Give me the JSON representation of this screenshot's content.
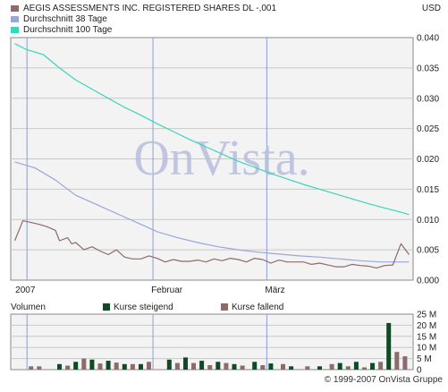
{
  "header": {
    "security_name": "AEGIS ASSESSMENTS INC. REGISTERED SHARES DL -,001",
    "currency": "USD"
  },
  "legend": [
    {
      "name": "AEGIS ASSESSMENTS INC. REGISTERED SHARES DL -,001",
      "color": "#8c6b6b"
    },
    {
      "name": "Durchschnitt 38 Tage",
      "color": "#9aa6d8"
    },
    {
      "name": "Durchschnitt 100 Tage",
      "color": "#3ad6b8"
    }
  ],
  "watermark": "OnVista.",
  "volume_panel": {
    "label": "Volumen",
    "rising_label": "Kurse steigend",
    "falling_label": "Kurse fallend",
    "rising_color": "#0f4a24",
    "falling_color": "#8c6b6b"
  },
  "copyright": "© 1999-2007 OnVista Gruppe",
  "chart_data": [
    {
      "type": "line",
      "x_tick_labels": [
        "2007",
        "Februar",
        "März"
      ],
      "x_ticks_day": [
        0,
        31,
        59
      ],
      "ylim": [
        0,
        0.04
      ],
      "y_ticks": [
        "0.000",
        "0.005",
        "0.010",
        "0.015",
        "0.020",
        "0.025",
        "0.030",
        "0.035",
        "0.040"
      ],
      "grid": true,
      "series": [
        {
          "name": "AEGIS ASSESSMENTS INC. REGISTERED SHARES DL -,001",
          "color": "#8c6b6b",
          "x_day": [
            -3,
            -1,
            1,
            3,
            5,
            7,
            8,
            10,
            11,
            12,
            14,
            16,
            18,
            20,
            22,
            24,
            26,
            28,
            30,
            32,
            34,
            36,
            38,
            40,
            42,
            44,
            46,
            48,
            50,
            52,
            54,
            56,
            58,
            60,
            62,
            64,
            66,
            68,
            70,
            72,
            74,
            76,
            78,
            80,
            82,
            84,
            86,
            88,
            90,
            92,
            94
          ],
          "values": [
            0.0065,
            0.0098,
            0.0095,
            0.0092,
            0.0088,
            0.0082,
            0.0065,
            0.007,
            0.006,
            0.0062,
            0.005,
            0.0055,
            0.0048,
            0.0042,
            0.005,
            0.0038,
            0.0035,
            0.0035,
            0.004,
            0.0036,
            0.003,
            0.0034,
            0.0031,
            0.0031,
            0.0033,
            0.003,
            0.0035,
            0.0032,
            0.0036,
            0.0034,
            0.003,
            0.0036,
            0.0034,
            0.0028,
            0.0033,
            0.003,
            0.003,
            0.003,
            0.0026,
            0.0028,
            0.0025,
            0.0022,
            0.0022,
            0.0026,
            0.0024,
            0.0023,
            0.002,
            0.0024,
            0.0025,
            0.006,
            0.0042
          ]
        },
        {
          "name": "Durchschnitt 38 Tage",
          "color": "#9aa6d8",
          "x_day": [
            -3,
            2,
            7,
            12,
            17,
            22,
            27,
            32,
            37,
            42,
            47,
            52,
            57,
            62,
            67,
            72,
            77,
            82,
            87,
            92,
            94
          ],
          "values": [
            0.0195,
            0.0185,
            0.0165,
            0.014,
            0.0125,
            0.011,
            0.0095,
            0.008,
            0.007,
            0.0062,
            0.0055,
            0.005,
            0.0046,
            0.0043,
            0.004,
            0.0038,
            0.0035,
            0.0032,
            0.003,
            0.003,
            0.003
          ]
        },
        {
          "name": "Durchschnitt 100 Tage",
          "color": "#3ad6b8",
          "x_day": [
            -3,
            0,
            4,
            8,
            12,
            16,
            20,
            24,
            28,
            32,
            36,
            40,
            44,
            48,
            52,
            56,
            60,
            64,
            68,
            72,
            76,
            80,
            84,
            88,
            92,
            94
          ],
          "values": [
            0.039,
            0.038,
            0.0372,
            0.035,
            0.033,
            0.0315,
            0.03,
            0.0285,
            0.0272,
            0.0258,
            0.0245,
            0.0232,
            0.022,
            0.0208,
            0.0196,
            0.0186,
            0.0176,
            0.0167,
            0.0158,
            0.015,
            0.0142,
            0.0134,
            0.0126,
            0.0119,
            0.0112,
            0.0108
          ]
        }
      ]
    },
    {
      "type": "bar",
      "y_ticks": [
        "0",
        "5 M",
        "10 M",
        "15 M",
        "20 M",
        "25 M"
      ],
      "ylim": [
        0,
        25
      ],
      "y_unit": "M",
      "grid": true,
      "x_day": [
        1,
        3,
        8,
        10,
        12,
        14,
        16,
        18,
        20,
        22,
        24,
        26,
        28,
        30,
        35,
        37,
        39,
        41,
        43,
        45,
        47,
        49,
        51,
        53,
        56,
        58,
        60,
        63,
        65,
        69,
        72,
        75,
        77,
        79,
        81,
        83,
        85,
        87,
        89,
        91,
        93
      ],
      "direction": [
        "f",
        "f",
        "r",
        "f",
        "r",
        "f",
        "r",
        "f",
        "r",
        "f",
        "r",
        "f",
        "r",
        "f",
        "r",
        "f",
        "r",
        "f",
        "r",
        "f",
        "r",
        "f",
        "r",
        "f",
        "r",
        "f",
        "r",
        "f",
        "r",
        "f",
        "r",
        "f",
        "r",
        "f",
        "r",
        "f",
        "r",
        "f",
        "r",
        "f",
        "f"
      ],
      "values": [
        1.5,
        1.5,
        2.5,
        1.8,
        3.5,
        5.0,
        4.5,
        2.8,
        4.0,
        3.2,
        2.5,
        2.5,
        2.5,
        3.5,
        4.5,
        3.0,
        5.5,
        3.0,
        4.0,
        2.0,
        3.5,
        3.0,
        2.5,
        1.8,
        3.5,
        2.0,
        2.8,
        2.5,
        1.5,
        1.5,
        1.5,
        2.5,
        3.0,
        1.5,
        3.5,
        1.0,
        3.0,
        3.5,
        21.0,
        8.0,
        6.0
      ]
    }
  ]
}
